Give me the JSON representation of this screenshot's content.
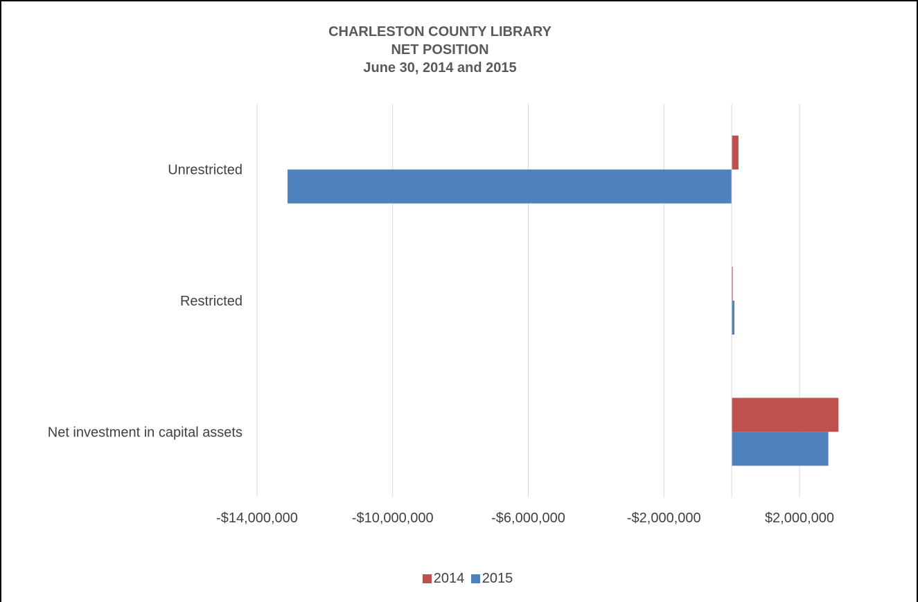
{
  "chart_data": {
    "type": "bar",
    "orientation": "horizontal",
    "title_lines": [
      "CHARLESTON COUNTY LIBRARY",
      "NET POSITION",
      "June 30, 2014 and 2015"
    ],
    "categories": [
      "Unrestricted",
      "Restricted",
      "Net investment in capital assets"
    ],
    "series": [
      {
        "name": "2014",
        "color": "#C0504D",
        "values": [
          200000,
          20000,
          3150000
        ]
      },
      {
        "name": "2015",
        "color": "#4F81BD",
        "values": [
          -13100000,
          80000,
          2850000
        ]
      }
    ],
    "xlim": [
      -14000000,
      2000000
    ],
    "xticks": [
      -14000000,
      -10000000,
      -6000000,
      -2000000,
      2000000
    ],
    "xtick_labels": [
      "-$14,000,000",
      "-$10,000,000",
      "-$6,000,000",
      "-$2,000,000",
      "$2,000,000"
    ],
    "grid": true,
    "legend_position": "bottom"
  }
}
